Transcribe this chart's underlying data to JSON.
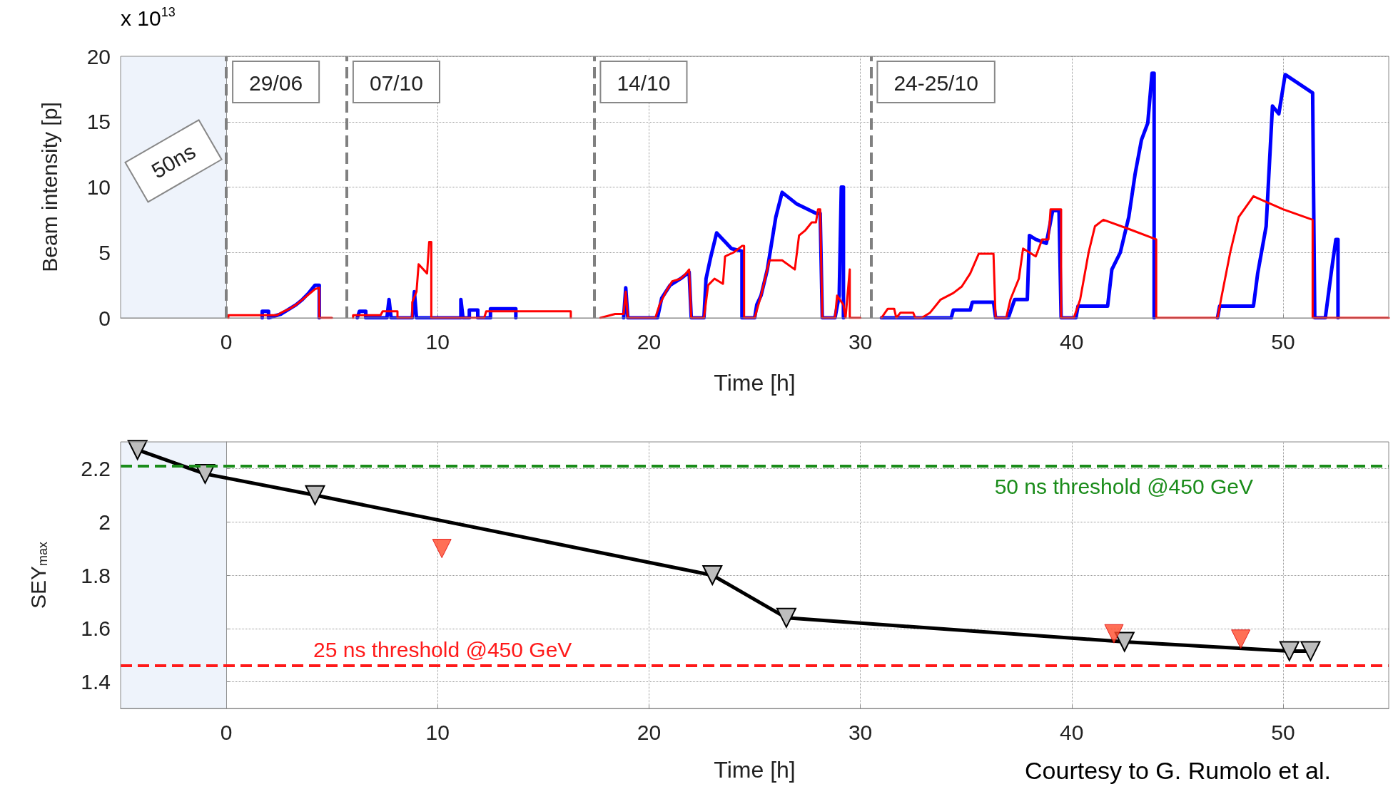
{
  "chart_data": [
    {
      "type": "line",
      "xlabel": "Time [h]",
      "ylabel": "Beam intensity [p]",
      "annotations": [
        "x 10$^{13}$",
        "29/06",
        "07/10",
        "14/10",
        "24-25/10"
      ],
      "xlim": [
        -5,
        55
      ],
      "xticks": [
        0,
        10,
        20,
        30,
        40,
        50
      ],
      "ylim": [
        0,
        20
      ],
      "yticks": [
        0,
        5,
        10,
        15,
        20
      ],
      "grid": true,
      "marker": "none",
      "line_style": "solid",
      "series": [
        {
          "color": "#0000ff",
          "x": [
            1.7,
            1.7,
            2.0,
            2.0,
            2.6,
            3.0,
            3.3,
            3.6,
            3.9,
            4.2,
            4.4,
            4.4,
            5.4,
            6.2,
            6.3,
            6.6,
            6.6,
            7.6,
            7.7,
            7.8,
            8.8,
            8.9,
            9.0,
            11.1,
            11.1,
            11.2,
            11.5,
            11.5,
            11.9,
            11.9,
            12.5,
            12.5,
            13.7,
            13.7,
            17,
            18.8,
            18.9,
            19.0,
            20.4,
            20.6,
            21.0,
            21.5,
            21.9,
            22.0,
            22.6,
            22.7,
            22.9,
            23.2,
            23.9,
            24.4,
            24.4,
            25.0,
            25.1,
            25.3,
            25.6,
            25.8,
            26.0,
            26.3,
            27.0,
            27.9,
            28.1,
            28.2,
            28.8,
            29.0,
            29.1,
            29.2,
            29.2,
            30,
            31.0,
            34.3,
            34.4,
            35.2,
            35.3,
            36.3,
            36.4,
            37.0,
            37.3,
            37.9,
            38.0,
            38.3,
            38.8,
            39.1,
            39.4,
            39.5,
            40.2,
            40.3,
            41.7,
            41.9,
            42.3,
            42.7,
            43.0,
            43.3,
            43.6,
            43.8,
            43.9,
            43.9,
            45,
            46.9,
            47.0,
            48.6,
            48.8,
            49.2,
            49.5,
            49.8,
            50.1,
            51.4,
            51.5,
            52.0,
            52.3,
            52.5,
            52.6,
            52.6
          ],
          "values": [
            0,
            0.5,
            0.5,
            0,
            0.3,
            0.7,
            1.0,
            1.4,
            1.9,
            2.5,
            2.5,
            0,
            null,
            0,
            0.5,
            0.5,
            0,
            0,
            1.4,
            0,
            0,
            2.0,
            0,
            0,
            1.4,
            0,
            0,
            0.6,
            0.6,
            0,
            0,
            0.7,
            0.7,
            0,
            null,
            0,
            2.3,
            0,
            0,
            1.5,
            2.5,
            3.0,
            3.5,
            0,
            0,
            3.0,
            4.5,
            6.5,
            5.3,
            5.1,
            0,
            0,
            1.0,
            1.7,
            3.7,
            5.7,
            7.7,
            9.6,
            8.7,
            8.0,
            8.0,
            0,
            0,
            1.7,
            10.0,
            10.0,
            0,
            null,
            0,
            0,
            0.6,
            0.6,
            1.2,
            1.2,
            0,
            0,
            1.4,
            1.4,
            6.3,
            6.0,
            5.7,
            8.2,
            8.2,
            0,
            0,
            0.9,
            0.9,
            3.7,
            5.0,
            7.7,
            11.0,
            13.6,
            14.9,
            18.7,
            18.7,
            0,
            null,
            0,
            0.9,
            0.9,
            3.4,
            7.0,
            16.2,
            15.6,
            18.6,
            17.2,
            0,
            0,
            3.7,
            6.0,
            6.0,
            0
          ]
        },
        {
          "color": "#ff0000",
          "x": [
            0.1,
            0.1,
            2.4,
            2.6,
            3.0,
            3.3,
            3.6,
            3.9,
            4.2,
            4.4,
            4.4,
            5.0,
            5.4,
            6.0,
            6.0,
            7.3,
            7.4,
            8.1,
            8.1,
            8.8,
            8.8,
            9.0,
            9.1,
            9.5,
            9.6,
            9.7,
            9.7,
            12.2,
            12.3,
            16.3,
            16.3,
            17,
            17.7,
            18.4,
            18.8,
            18.9,
            19.0,
            20.3,
            20.5,
            20.8,
            21.1,
            21.5,
            21.7,
            21.9,
            22.0,
            22.6,
            22.8,
            23.1,
            23.5,
            23.6,
            24.0,
            24.4,
            24.5,
            24.5,
            25.0,
            25.3,
            25.7,
            26.3,
            26.9,
            27.1,
            27.4,
            27.7,
            27.9,
            28.0,
            28.1,
            28.2,
            28.8,
            28.9,
            29.2,
            29.3,
            29.5,
            29.5,
            30.0,
            30.3,
            31.0,
            31.3,
            31.6,
            31.7,
            31.9,
            32.5,
            32.6,
            32.9,
            33.3,
            33.8,
            34.4,
            34.8,
            35.2,
            35.6,
            36.3,
            36.4,
            36.9,
            37.1,
            37.5,
            37.7,
            38.3,
            38.6,
            38.9,
            39.0,
            39.5,
            39.5,
            40.1,
            40.4,
            40.8,
            41.1,
            41.5,
            42.7,
            44.0,
            44.0,
            46.9,
            47.1,
            47.5,
            47.9,
            48.6,
            50.0,
            51.4,
            51.4,
            55
          ],
          "values": [
            0,
            0.2,
            0.2,
            0.4,
            0.7,
            1.0,
            1.4,
            1.8,
            2.2,
            2.3,
            0,
            0,
            null,
            0,
            0.2,
            0.2,
            0.5,
            0.5,
            0,
            0,
            1.2,
            2.0,
            4.1,
            3.4,
            5.8,
            5.8,
            0,
            0,
            0.5,
            0.5,
            0,
            null,
            0,
            0.3,
            0.3,
            2.0,
            0,
            0,
            1.0,
            2.0,
            2.8,
            3.0,
            3.3,
            3.7,
            0,
            0,
            2.5,
            3.0,
            2.6,
            4.7,
            5.0,
            5.5,
            5.5,
            0,
            0,
            1.7,
            4.4,
            4.4,
            3.7,
            6.3,
            6.7,
            7.3,
            7.3,
            8.3,
            8.3,
            0,
            0,
            1.7,
            1.0,
            0,
            3.7,
            0,
            0,
            null,
            0,
            0.7,
            0.7,
            0,
            0.4,
            0.4,
            0,
            0,
            0.4,
            1.4,
            1.9,
            2.4,
            3.4,
            4.9,
            4.9,
            0,
            0,
            1.4,
            3.0,
            5.3,
            4.7,
            6.0,
            6.0,
            8.3,
            8.3,
            0,
            0,
            1.4,
            5.0,
            7.0,
            7.5,
            6.8,
            6.0,
            0,
            0,
            1.7,
            5.0,
            7.7,
            9.3,
            8.3,
            7.5,
            0,
            0
          ]
        }
      ],
      "ref_lines": [
        {
          "axis": "x",
          "value": 0,
          "color": "#808080",
          "line_style": "dashed"
        },
        {
          "axis": "x",
          "value": 5.7,
          "color": "#808080",
          "line_style": "dashed"
        },
        {
          "axis": "x",
          "value": 17.4,
          "color": "#808080",
          "line_style": "dashed"
        },
        {
          "axis": "x",
          "value": 30.5,
          "color": "#808080",
          "line_style": "dashed"
        }
      ],
      "bands": [
        {
          "axis": "x",
          "from": -5,
          "to": 0,
          "label": "50ns",
          "color": "#eef3fb"
        }
      ]
    },
    {
      "type": "line",
      "xlabel": "Time [h]",
      "ylabel": "SEY$_{max}$",
      "annotations": [
        "Courtesy to G. Rumolo et al."
      ],
      "xlim": [
        -5,
        55
      ],
      "xticks": [
        0,
        10,
        20,
        30,
        40,
        50
      ],
      "ylim": [
        1.3,
        2.3
      ],
      "yticks": [
        1.4,
        1.6,
        1.8,
        2,
        2.2
      ],
      "grid": true,
      "marker": "triangle",
      "series": [
        {
          "color": "#000000",
          "x": [
            -4.2,
            -1.0,
            4.2,
            23.0,
            26.5,
            42.5,
            50.3,
            51.3
          ],
          "values": [
            2.27,
            2.18,
            2.1,
            1.8,
            1.64,
            1.55,
            1.515,
            1.515
          ]
        },
        {
          "type": "scatter",
          "color": "#ff4b2b",
          "x": [
            10.2,
            42.0,
            48.0
          ],
          "values": [
            1.9,
            1.58,
            1.56
          ]
        }
      ],
      "ref_lines": [
        {
          "axis": "y",
          "value": 2.21,
          "label": "50 ns threshold @450 GeV",
          "color": "#1a8c1a",
          "line_style": "dashed"
        },
        {
          "axis": "y",
          "value": 1.46,
          "label": "25 ns threshold @450 GeV",
          "color": "#ff1a1a",
          "line_style": "dashed"
        }
      ],
      "bands": [
        {
          "axis": "x",
          "from": -5,
          "to": 0,
          "color": "#eef3fb"
        }
      ]
    }
  ]
}
